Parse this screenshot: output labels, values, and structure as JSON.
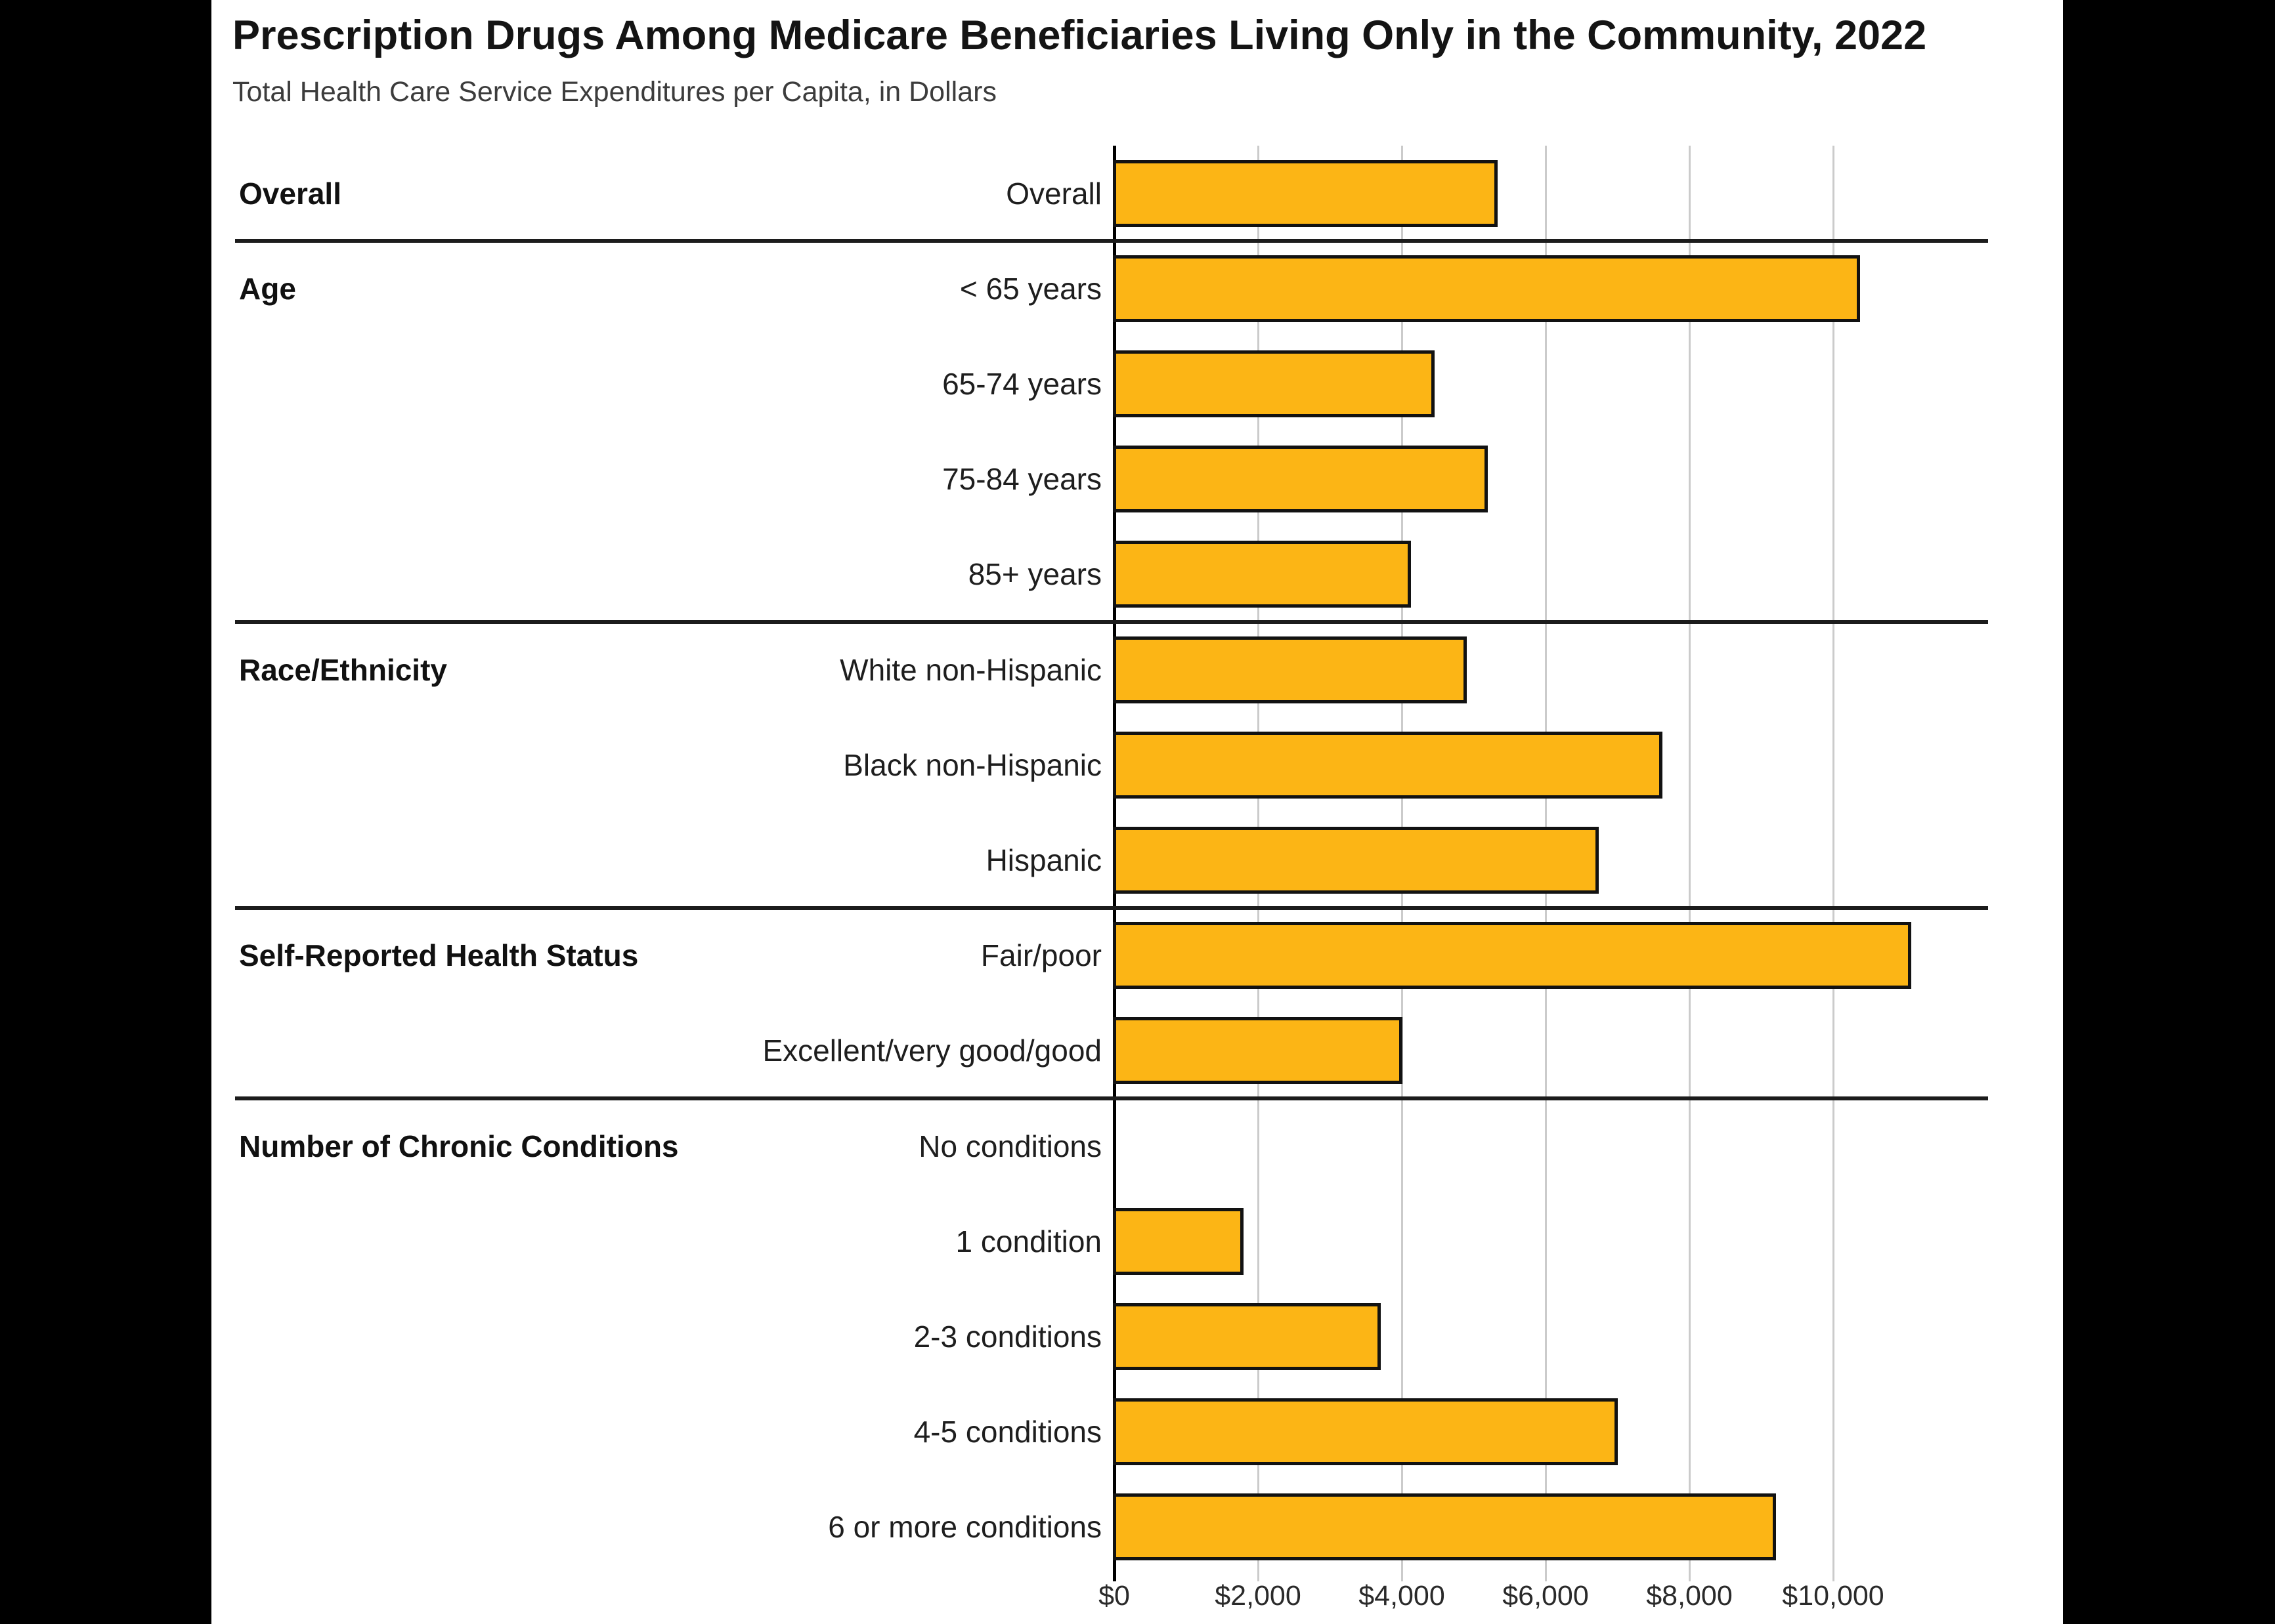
{
  "page": {
    "background_color": "#000000",
    "card_background_color": "#ffffff"
  },
  "header": {
    "title": "Prescription Drugs Among Medicare Beneficiaries Living Only in the Community, 2022",
    "subtitle": "Total Health Care Service Expenditures per Capita, in Dollars"
  },
  "chart_data": {
    "type": "bar",
    "orientation": "horizontal",
    "title": "Prescription Drugs Among Medicare Beneficiaries Living Only in the Community, 2022",
    "subtitle": "Total Health Care Service Expenditures per Capita, in Dollars",
    "unit": "dollars per capita",
    "x_axis": {
      "ticks": [
        "$0",
        "$2,000",
        "$4,000",
        "$6,000",
        "$8,000",
        "$10,000"
      ],
      "tick_values": [
        0,
        2000,
        4000,
        6000,
        8000,
        10000
      ],
      "min": 0,
      "max": 12000,
      "grid": true
    },
    "legend": "none",
    "groups": [
      {
        "label": "Overall",
        "rows": [
          {
            "label": "Overall",
            "value": 5290
          }
        ]
      },
      {
        "label": "Age",
        "rows": [
          {
            "label": "< 65 years",
            "value": 10330
          },
          {
            "label": "65-74 years",
            "value": 4410
          },
          {
            "label": "75-84 years",
            "value": 5150
          },
          {
            "label": "85+ years",
            "value": 4080
          }
        ]
      },
      {
        "label": "Race/Ethnicity",
        "rows": [
          {
            "label": "White non-Hispanic",
            "value": 4860
          },
          {
            "label": "Black non-Hispanic",
            "value": 7580
          },
          {
            "label": "Hispanic",
            "value": 6690
          }
        ]
      },
      {
        "label": "Self-Reported Health Status",
        "rows": [
          {
            "label": "Fair/poor",
            "value": 11040
          },
          {
            "label": "Excellent/very good/good",
            "value": 3960
          }
        ]
      },
      {
        "label": "Number of Chronic Conditions",
        "rows": [
          {
            "label": "No conditions",
            "value": 0
          },
          {
            "label": "1 condition",
            "value": 1750
          },
          {
            "label": "2-3 conditions",
            "value": 3660
          },
          {
            "label": "4-5 conditions",
            "value": 6960
          },
          {
            "label": "6 or more conditions",
            "value": 9160
          }
        ]
      }
    ],
    "colors": {
      "bar_fill": "#fcb515",
      "bar_border": "#121212",
      "gridline": "#cbcbcb",
      "zero_axis": "#000000",
      "group_separator": "#1c1c1c"
    }
  }
}
